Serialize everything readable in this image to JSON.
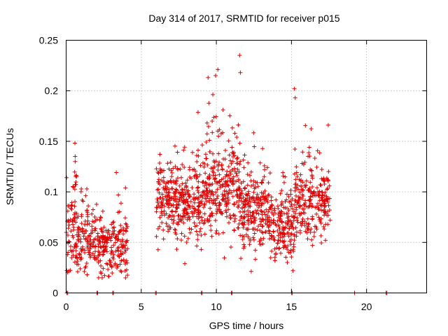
{
  "chart_data": {
    "type": "scatter",
    "title": "Day 314 of 2017, SRMTID for receiver p015",
    "xlabel": "GPS time / hours",
    "ylabel": "SRMTID / TECUs",
    "xlim": [
      0,
      24
    ],
    "ylim": [
      0,
      0.25
    ],
    "xticks": [
      0,
      5,
      10,
      15,
      20
    ],
    "xtick_labels": [
      "0",
      "5",
      "10",
      "15",
      "20"
    ],
    "yticks": [
      0,
      0.05,
      0.1,
      0.15,
      0.2,
      0.25
    ],
    "ytick_labels": [
      "0",
      "0.05",
      "0.1",
      "0.15",
      "0.2",
      "0.25"
    ],
    "grid": true,
    "marker": "plus",
    "marker_color": "#e00000",
    "segments": [
      {
        "x_start": 0.0,
        "x_end": 1.6,
        "median": 0.055,
        "spread": 0.035,
        "count": 150
      },
      {
        "x_start": 0.55,
        "x_end": 0.75,
        "median": 0.11,
        "spread": 0.02,
        "count": 10
      },
      {
        "x_start": 1.6,
        "x_end": 2.1,
        "median": 0.05,
        "spread": 0.03,
        "count": 40
      },
      {
        "x_start": 2.1,
        "x_end": 4.1,
        "median": 0.045,
        "spread": 0.03,
        "count": 190
      },
      {
        "x_start": 6.0,
        "x_end": 9.0,
        "median": 0.09,
        "spread": 0.04,
        "count": 330
      },
      {
        "x_start": 9.0,
        "x_end": 11.5,
        "median": 0.105,
        "spread": 0.05,
        "count": 290
      },
      {
        "x_start": 11.5,
        "x_end": 13.5,
        "median": 0.08,
        "spread": 0.04,
        "count": 230
      },
      {
        "x_start": 13.5,
        "x_end": 15.2,
        "median": 0.065,
        "spread": 0.035,
        "count": 180
      },
      {
        "x_start": 15.2,
        "x_end": 17.6,
        "median": 0.09,
        "spread": 0.04,
        "count": 240
      }
    ],
    "notable_points": [
      {
        "x": 11.55,
        "y": 0.235
      },
      {
        "x": 11.6,
        "y": 0.218
      },
      {
        "x": 10.1,
        "y": 0.221
      },
      {
        "x": 9.95,
        "y": 0.215
      },
      {
        "x": 9.45,
        "y": 0.213
      },
      {
        "x": 15.2,
        "y": 0.202
      },
      {
        "x": 15.25,
        "y": 0.193
      },
      {
        "x": 0.6,
        "y": 0.135
      },
      {
        "x": 0.6,
        "y": 0.13
      },
      {
        "x": 3.95,
        "y": 0.104
      },
      {
        "x": 15.1,
        "y": 0.022
      },
      {
        "x": 1.4,
        "y": 0.018
      },
      {
        "x": 7.9,
        "y": 0.029
      },
      {
        "x": 17.45,
        "y": 0.166
      }
    ],
    "zero_points_x": [
      0.05,
      0.1,
      2.05,
      2.1,
      3.1,
      3.15,
      5.95,
      6.0,
      9.0,
      9.05,
      11.0,
      11.05,
      15.0,
      15.05,
      19.2,
      21.3,
      21.35
    ]
  }
}
